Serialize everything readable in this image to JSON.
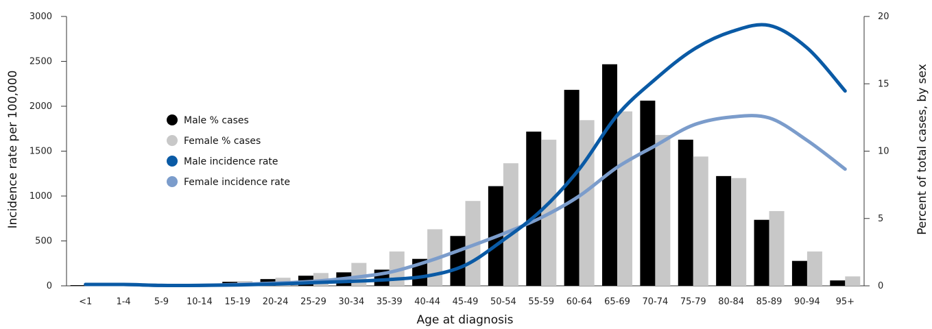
{
  "chart_data": {
    "type": "bar",
    "categories": [
      "<1",
      "1-4",
      "5-9",
      "10-14",
      "15-19",
      "20-24",
      "25-29",
      "30-34",
      "35-39",
      "40-44",
      "45-49",
      "50-54",
      "55-59",
      "60-64",
      "65-69",
      "70-74",
      "75-79",
      "80-84",
      "85-89",
      "90-94",
      "95+"
    ],
    "xlabel": "Age at diagnosis",
    "ylabel_left": "Incidence rate per 100,000",
    "ylabel_right": "Percent of total cases, by sex",
    "ylim_left": [
      0,
      3000
    ],
    "yticks_left": [
      0,
      500,
      1000,
      1500,
      2000,
      2500,
      3000
    ],
    "ylim_right": [
      0,
      20
    ],
    "yticks_right": [
      0,
      5,
      10,
      15,
      20
    ],
    "grid": false,
    "legend_position": "upper-left",
    "bar_series": [
      {
        "name": "Male % cases",
        "color": "#000000",
        "axis": "right",
        "values": [
          0.05,
          0.02,
          0.02,
          0.05,
          0.3,
          0.5,
          0.75,
          1.0,
          1.2,
          2.0,
          3.7,
          7.4,
          11.45,
          14.55,
          16.45,
          13.75,
          10.85,
          8.15,
          4.9,
          1.85,
          0.4
        ]
      },
      {
        "name": "Female % cases",
        "color": "#c8c8c8",
        "axis": "right",
        "values": [
          0.03,
          0.02,
          0.02,
          0.05,
          0.35,
          0.6,
          0.95,
          1.7,
          2.55,
          4.2,
          6.3,
          9.1,
          10.85,
          12.3,
          12.95,
          11.2,
          9.6,
          8.0,
          5.55,
          2.55,
          0.7
        ]
      }
    ],
    "line_series": [
      {
        "name": "Male incidence rate",
        "color": "#0a5aa5",
        "axis": "left",
        "values": [
          15,
          15,
          5,
          5,
          10,
          20,
          35,
          50,
          70,
          110,
          230,
          510,
          840,
          1300,
          1900,
          2300,
          2630,
          2830,
          2900,
          2650,
          2170
        ]
      },
      {
        "name": "Female incidence rate",
        "color": "#7b9ccb",
        "axis": "left",
        "values": [
          15,
          15,
          5,
          5,
          15,
          30,
          50,
          90,
          150,
          270,
          420,
          580,
          760,
          1000,
          1320,
          1560,
          1790,
          1880,
          1870,
          1620,
          1300
        ]
      }
    ]
  }
}
